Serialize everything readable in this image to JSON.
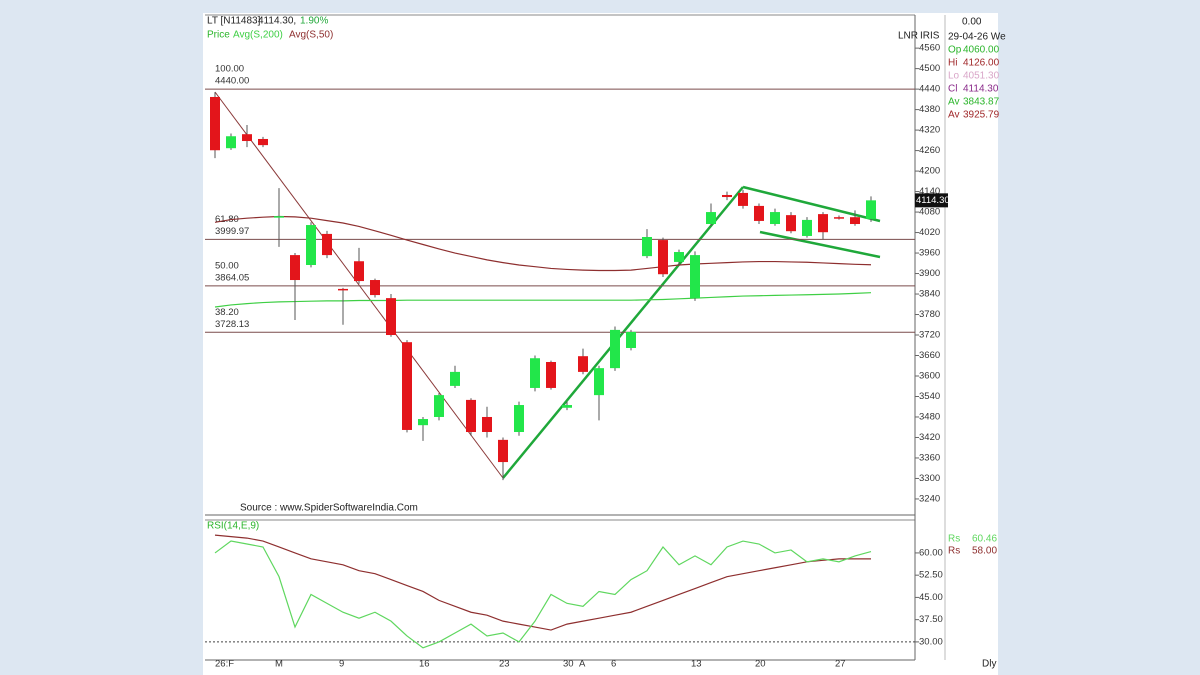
{
  "chart_data": {
    "type": "candlestick",
    "header": {
      "symbol": "LT [N11483]",
      "price": "4114.30,",
      "change": "1.90%"
    },
    "price_label": "Price",
    "top_right": [
      "LNR",
      "IRIS"
    ],
    "categories": [
      "26:F",
      null,
      null,
      null,
      "M",
      null,
      null,
      null,
      "9",
      null,
      null,
      null,
      null,
      "16",
      null,
      null,
      null,
      null,
      "23",
      null,
      null,
      null,
      "30",
      "A",
      null,
      "6",
      null,
      null,
      null,
      null,
      "13",
      null,
      null,
      null,
      "20",
      null,
      null,
      null,
      null,
      "27",
      null,
      null
    ],
    "period_label": "Dly",
    "open": [
      4417,
      4267,
      4308,
      4294,
      4065,
      3954,
      3925,
      4016,
      3855,
      3936,
      3881,
      3828,
      3699,
      3456,
      3480,
      3571,
      3530,
      3480,
      3413,
      3436,
      3565,
      3641,
      3507,
      3658,
      3544,
      3623,
      3682,
      3951,
      3998,
      3934,
      3828,
      4045,
      4130,
      4136,
      4098,
      4045,
      4071,
      4010,
      4074,
      4065,
      4065,
      4060
    ],
    "high": [
      4431,
      4310,
      4335,
      4300,
      4150,
      3960,
      4050,
      4025,
      3858,
      3975,
      3885,
      3840,
      3705,
      3480,
      3550,
      3630,
      3535,
      3510,
      3420,
      3525,
      3660,
      3645,
      3525,
      3680,
      3630,
      3745,
      3735,
      4030,
      4005,
      3970,
      3965,
      4105,
      4140,
      4145,
      4105,
      4090,
      4080,
      4065,
      4080,
      4070,
      4085,
      4126
    ],
    "low": [
      4238,
      4262,
      4270,
      4270,
      3978,
      3764,
      3918,
      3945,
      3750,
      3870,
      3830,
      3715,
      3435,
      3410,
      3470,
      3565,
      3425,
      3420,
      3295,
      3425,
      3555,
      3560,
      3500,
      3605,
      3470,
      3615,
      3675,
      3945,
      3890,
      3925,
      3820,
      4040,
      4115,
      4090,
      4045,
      4040,
      4018,
      4005,
      4000,
      4058,
      4040,
      4051.3
    ],
    "close": [
      4261,
      4302,
      4288,
      4276,
      4068,
      3881,
      4042,
      3954,
      3852,
      3878,
      3837,
      3720,
      3442,
      3474,
      3544,
      3612,
      3436,
      3436,
      3348,
      3515,
      3652,
      3565,
      3515,
      3612,
      3623,
      3735,
      3729,
      4007,
      3898,
      3963,
      3954,
      4080,
      4124,
      4098,
      4054,
      4080,
      4024,
      4057,
      4021,
      4062,
      4045,
      4114.3
    ],
    "last_close_label": "4114.30",
    "up_color": "#22e64a",
    "down_color": "#e3151b",
    "series": [
      {
        "name": "Avg(S,200)",
        "color": "#3fcf45",
        "values": [
          3802,
          3808,
          3812,
          3815,
          3817,
          3818,
          3819,
          3820,
          3820,
          3821,
          3821,
          3821,
          3822,
          3822,
          3822,
          3822,
          3822,
          3822,
          3822,
          3822,
          3822,
          3822,
          3822,
          3822,
          3822,
          3822,
          3822,
          3823,
          3824,
          3826,
          3828,
          3830,
          3832,
          3834,
          3835,
          3836,
          3837,
          3838,
          3839,
          3840,
          3842,
          3843.87
        ]
      },
      {
        "name": "Avg(S,50)",
        "color": "#8e2f2f",
        "values": [
          4050,
          4058,
          4062,
          4065,
          4067,
          4066,
          4062,
          4055,
          4048,
          4038,
          4025,
          4012,
          3998,
          3985,
          3972,
          3960,
          3950,
          3940,
          3932,
          3925,
          3920,
          3915,
          3912,
          3910,
          3909,
          3909,
          3910,
          3915,
          3920,
          3925,
          3928,
          3930,
          3932,
          3934,
          3935,
          3935,
          3934,
          3933,
          3931,
          3929,
          3927,
          3925.79
        ]
      }
    ],
    "ylim": [
      3193,
      4657
    ],
    "yticks": [
      4560,
      4500,
      4440,
      4380,
      4320,
      4260,
      4200,
      4140,
      4080,
      4020,
      3960,
      3900,
      3840,
      3780,
      3720,
      3660,
      3600,
      3540,
      3480,
      3420,
      3360,
      3300,
      3240
    ],
    "fib_levels": [
      {
        "ratio": "100.00",
        "price": {
          "value": 4440,
          "label": "4440.00"
        }
      },
      {
        "ratio": "61.80",
        "price": {
          "value": 3999.97,
          "label": "3999.97"
        }
      },
      {
        "ratio": "50.00",
        "price": {
          "value": 3864.05,
          "label": "3864.05"
        }
      },
      {
        "ratio": "38.20",
        "price": {
          "value": 3728.13,
          "label": "3728.13"
        }
      }
    ],
    "source": "Source : www.SpiderSoftwareIndia.Com",
    "info": {
      "top": "0.00",
      "date": "29-04-26 We",
      "rows": [
        {
          "key": "Op",
          "value": "4060.00",
          "color": "#2bb52b"
        },
        {
          "key": "Hi",
          "value": "4126.00",
          "color": "#a0282a"
        },
        {
          "key": "Lo",
          "value": "4051.30",
          "color": "#d9a6c8"
        },
        {
          "key": "Cl",
          "value": "4114.30",
          "color": "#8a2a8a"
        },
        {
          "key": "Av",
          "value": "3843.87",
          "color": "#2bb52b"
        },
        {
          "key": "Av",
          "value": "3925.79",
          "color": "#a0282a"
        }
      ]
    },
    "rsi": {
      "title": "RSI(14,E,9)",
      "ylim": [
        23.9,
        71.1
      ],
      "yticks": [
        {
          "value": 60,
          "label": "60.00"
        },
        {
          "value": 52.5,
          "label": "52.50"
        },
        {
          "value": 45,
          "label": "45.00"
        },
        {
          "value": 37.5,
          "label": "37.50"
        },
        {
          "value": 30,
          "label": "30.00"
        }
      ],
      "reference": 30,
      "series": [
        {
          "name": "Rs",
          "color": "#5fd75f",
          "value_label": "60.46",
          "values": [
            60,
            64,
            63,
            62,
            52,
            35,
            46,
            43,
            40,
            38,
            40,
            37,
            32,
            28,
            30,
            33,
            36,
            32,
            33,
            30,
            37,
            46,
            43,
            42,
            47,
            46,
            51,
            54,
            62,
            56,
            59,
            56,
            62,
            64,
            63,
            60,
            61,
            57,
            58,
            57,
            59,
            60.46
          ]
        },
        {
          "name": "Rs",
          "color": "#8e2f2f",
          "value_label": "58.00",
          "values": [
            66,
            65.5,
            65,
            64,
            62,
            60,
            58,
            57,
            56,
            54,
            53,
            51,
            49,
            47,
            44,
            42,
            40,
            39,
            37,
            36,
            35,
            34,
            36,
            37,
            38,
            39,
            40,
            42,
            44,
            46,
            48,
            50,
            52,
            53,
            54,
            55,
            56,
            57,
            57.5,
            58,
            58,
            58
          ]
        }
      ]
    }
  }
}
